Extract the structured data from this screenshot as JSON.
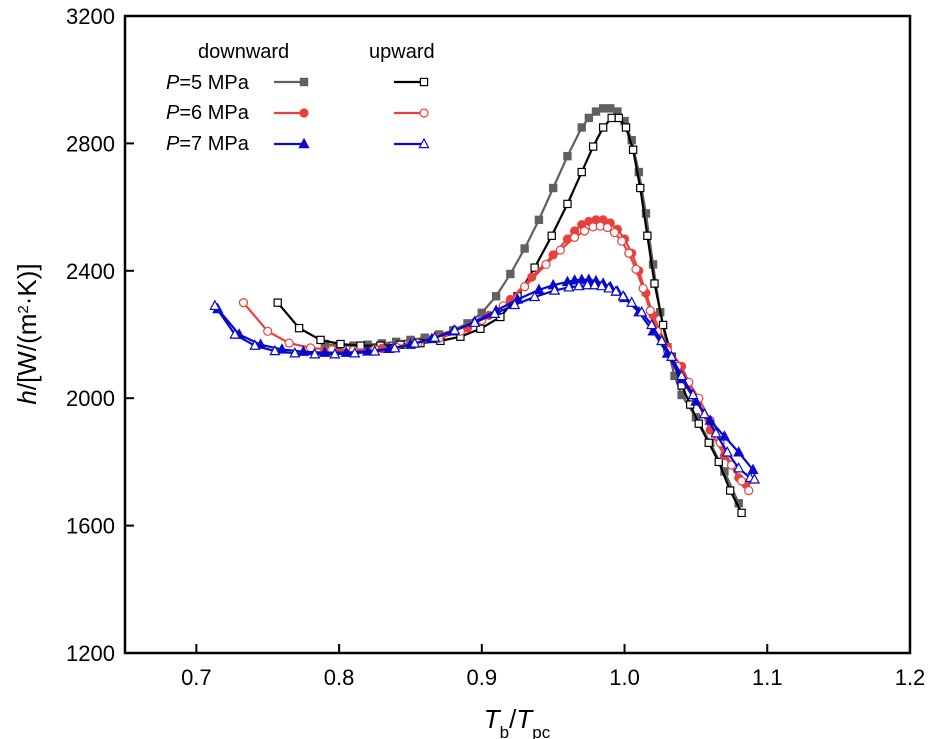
{
  "chart_data": {
    "type": "line",
    "xlabel": {
      "main": "T",
      "main_sub": "b",
      "sep": "/",
      "den": "T",
      "den_sub": "pc"
    },
    "ylabel": {
      "var": "h",
      "unit_pre": "/[W/(m",
      "sup": "2",
      "unit_post": "·K)]"
    },
    "xlim": [
      0.65,
      1.2
    ],
    "ylim": [
      1200,
      3200
    ],
    "xticks": [
      0.7,
      0.8,
      0.9,
      1.0,
      1.1,
      1.2
    ],
    "xtick_labels": [
      "0.7",
      "0.8",
      "0.9",
      "1.0",
      "1.1",
      "1.2"
    ],
    "yticks": [
      1200,
      1600,
      2000,
      2400,
      2800,
      3200
    ],
    "ytick_labels": [
      "1200",
      "1600",
      "2000",
      "2400",
      "2800",
      "3200"
    ],
    "legend": {
      "col_headers": [
        "downward",
        "upward"
      ],
      "rows": [
        {
          "var": "P",
          "label": "=5 MPa"
        },
        {
          "var": "P",
          "label": "=6 MPa"
        },
        {
          "var": "P",
          "label": "=7 MPa"
        }
      ]
    },
    "series": [
      {
        "name": "P=5 MPa downward",
        "pressure": "5 MPa",
        "direction": "downward",
        "color": "#606060",
        "marker": "square",
        "filled": true,
        "x": [
          0.79,
          0.8,
          0.81,
          0.82,
          0.83,
          0.84,
          0.85,
          0.86,
          0.87,
          0.88,
          0.89,
          0.9,
          0.91,
          0.92,
          0.93,
          0.94,
          0.95,
          0.96,
          0.97,
          0.975,
          0.98,
          0.985,
          0.99,
          0.995,
          1.0,
          1.005,
          1.01,
          1.015,
          1.02,
          1.025,
          1.03,
          1.035,
          1.04,
          1.05,
          1.06,
          1.07,
          1.08
        ],
        "y": [
          2170,
          2165,
          2165,
          2168,
          2172,
          2177,
          2183,
          2190,
          2200,
          2213,
          2235,
          2268,
          2320,
          2390,
          2470,
          2560,
          2660,
          2760,
          2850,
          2880,
          2900,
          2910,
          2910,
          2900,
          2870,
          2810,
          2710,
          2580,
          2420,
          2270,
          2160,
          2070,
          2010,
          1940,
          1860,
          1770,
          1670
        ]
      },
      {
        "name": "P=5 MPa upward",
        "pressure": "5 MPa",
        "direction": "upward",
        "color": "#000000",
        "marker": "square",
        "filled": false,
        "x": [
          0.757,
          0.772,
          0.787,
          0.801,
          0.815,
          0.829,
          0.843,
          0.857,
          0.871,
          0.885,
          0.899,
          0.913,
          0.925,
          0.937,
          0.949,
          0.96,
          0.97,
          0.978,
          0.985,
          0.991,
          0.996,
          1.001,
          1.006,
          1.011,
          1.016,
          1.021,
          1.027,
          1.033,
          1.04,
          1.046,
          1.052,
          1.059,
          1.066,
          1.074,
          1.082
        ],
        "y": [
          2300,
          2220,
          2183,
          2170,
          2165,
          2165,
          2168,
          2173,
          2180,
          2193,
          2218,
          2255,
          2320,
          2410,
          2510,
          2610,
          2710,
          2790,
          2850,
          2880,
          2880,
          2850,
          2780,
          2660,
          2510,
          2360,
          2230,
          2130,
          2040,
          1980,
          1920,
          1860,
          1800,
          1710,
          1640
        ]
      },
      {
        "name": "P=6 MPa downward",
        "pressure": "6 MPa",
        "direction": "downward",
        "color": "#e8413c",
        "marker": "circle",
        "filled": true,
        "x": [
          0.79,
          0.81,
          0.83,
          0.85,
          0.87,
          0.89,
          0.905,
          0.92,
          0.935,
          0.95,
          0.96,
          0.965,
          0.97,
          0.975,
          0.98,
          0.985,
          0.99,
          0.995,
          1.0,
          1.005,
          1.01,
          1.015,
          1.02,
          1.03,
          1.04,
          1.05,
          1.06,
          1.07,
          1.08,
          1.085
        ],
        "y": [
          2150,
          2150,
          2156,
          2170,
          2190,
          2220,
          2260,
          2310,
          2380,
          2450,
          2500,
          2525,
          2545,
          2555,
          2560,
          2560,
          2550,
          2530,
          2500,
          2455,
          2400,
          2330,
          2260,
          2160,
          2100,
          2000,
          1900,
          1820,
          1750,
          1730
        ]
      },
      {
        "name": "P=6 MPa upward",
        "pressure": "6 MPa",
        "direction": "upward",
        "color": "#e8413c",
        "marker": "circle",
        "filled": false,
        "x": [
          0.733,
          0.75,
          0.765,
          0.78,
          0.795,
          0.81,
          0.825,
          0.84,
          0.855,
          0.87,
          0.885,
          0.9,
          0.915,
          0.93,
          0.945,
          0.955,
          0.965,
          0.972,
          0.978,
          0.983,
          0.988,
          0.993,
          0.998,
          1.003,
          1.008,
          1.013,
          1.018,
          1.023,
          1.03,
          1.037,
          1.045,
          1.052,
          1.06,
          1.067,
          1.075,
          1.082,
          1.087
        ],
        "y": [
          2300,
          2210,
          2173,
          2158,
          2152,
          2150,
          2153,
          2160,
          2172,
          2188,
          2210,
          2245,
          2290,
          2350,
          2420,
          2465,
          2505,
          2525,
          2538,
          2540,
          2536,
          2520,
          2493,
          2455,
          2405,
          2345,
          2275,
          2210,
          2150,
          2100,
          2050,
          2000,
          1930,
          1860,
          1790,
          1740,
          1710
        ]
      },
      {
        "name": "P=7 MPa downward",
        "pressure": "7 MPa",
        "direction": "downward",
        "color": "#0a0acc",
        "marker": "triangle",
        "filled": true,
        "x": [
          0.715,
          0.73,
          0.745,
          0.76,
          0.775,
          0.79,
          0.805,
          0.82,
          0.835,
          0.85,
          0.865,
          0.88,
          0.895,
          0.91,
          0.925,
          0.94,
          0.95,
          0.96,
          0.965,
          0.97,
          0.975,
          0.98,
          0.985,
          0.99,
          0.995,
          1.0,
          1.01,
          1.02,
          1.03,
          1.04,
          1.05,
          1.06,
          1.07,
          1.08,
          1.09
        ],
        "y": [
          2280,
          2200,
          2168,
          2153,
          2146,
          2143,
          2143,
          2147,
          2155,
          2168,
          2186,
          2210,
          2240,
          2275,
          2310,
          2340,
          2355,
          2365,
          2370,
          2372,
          2372,
          2368,
          2360,
          2350,
          2335,
          2315,
          2270,
          2210,
          2140,
          2060,
          1990,
          1930,
          1880,
          1830,
          1775
        ]
      },
      {
        "name": "P=7 MPa upward",
        "pressure": "7 MPa",
        "direction": "upward",
        "color": "#0a0acc",
        "marker": "triangle",
        "filled": false,
        "x": [
          0.713,
          0.727,
          0.741,
          0.755,
          0.769,
          0.783,
          0.797,
          0.811,
          0.825,
          0.839,
          0.853,
          0.867,
          0.881,
          0.895,
          0.909,
          0.923,
          0.937,
          0.951,
          0.961,
          0.968,
          0.974,
          0.979,
          0.984,
          0.989,
          0.994,
          0.999,
          1.005,
          1.012,
          1.019,
          1.026,
          1.033,
          1.04,
          1.048,
          1.056,
          1.064,
          1.072,
          1.08,
          1.088,
          1.091
        ],
        "y": [
          2290,
          2200,
          2165,
          2148,
          2141,
          2138,
          2138,
          2141,
          2147,
          2157,
          2172,
          2190,
          2213,
          2237,
          2265,
          2293,
          2318,
          2338,
          2348,
          2352,
          2355,
          2355,
          2352,
          2345,
          2335,
          2320,
          2300,
          2270,
          2230,
          2180,
          2130,
          2070,
          2010,
          1950,
          1890,
          1830,
          1780,
          1750,
          1745
        ]
      }
    ]
  }
}
